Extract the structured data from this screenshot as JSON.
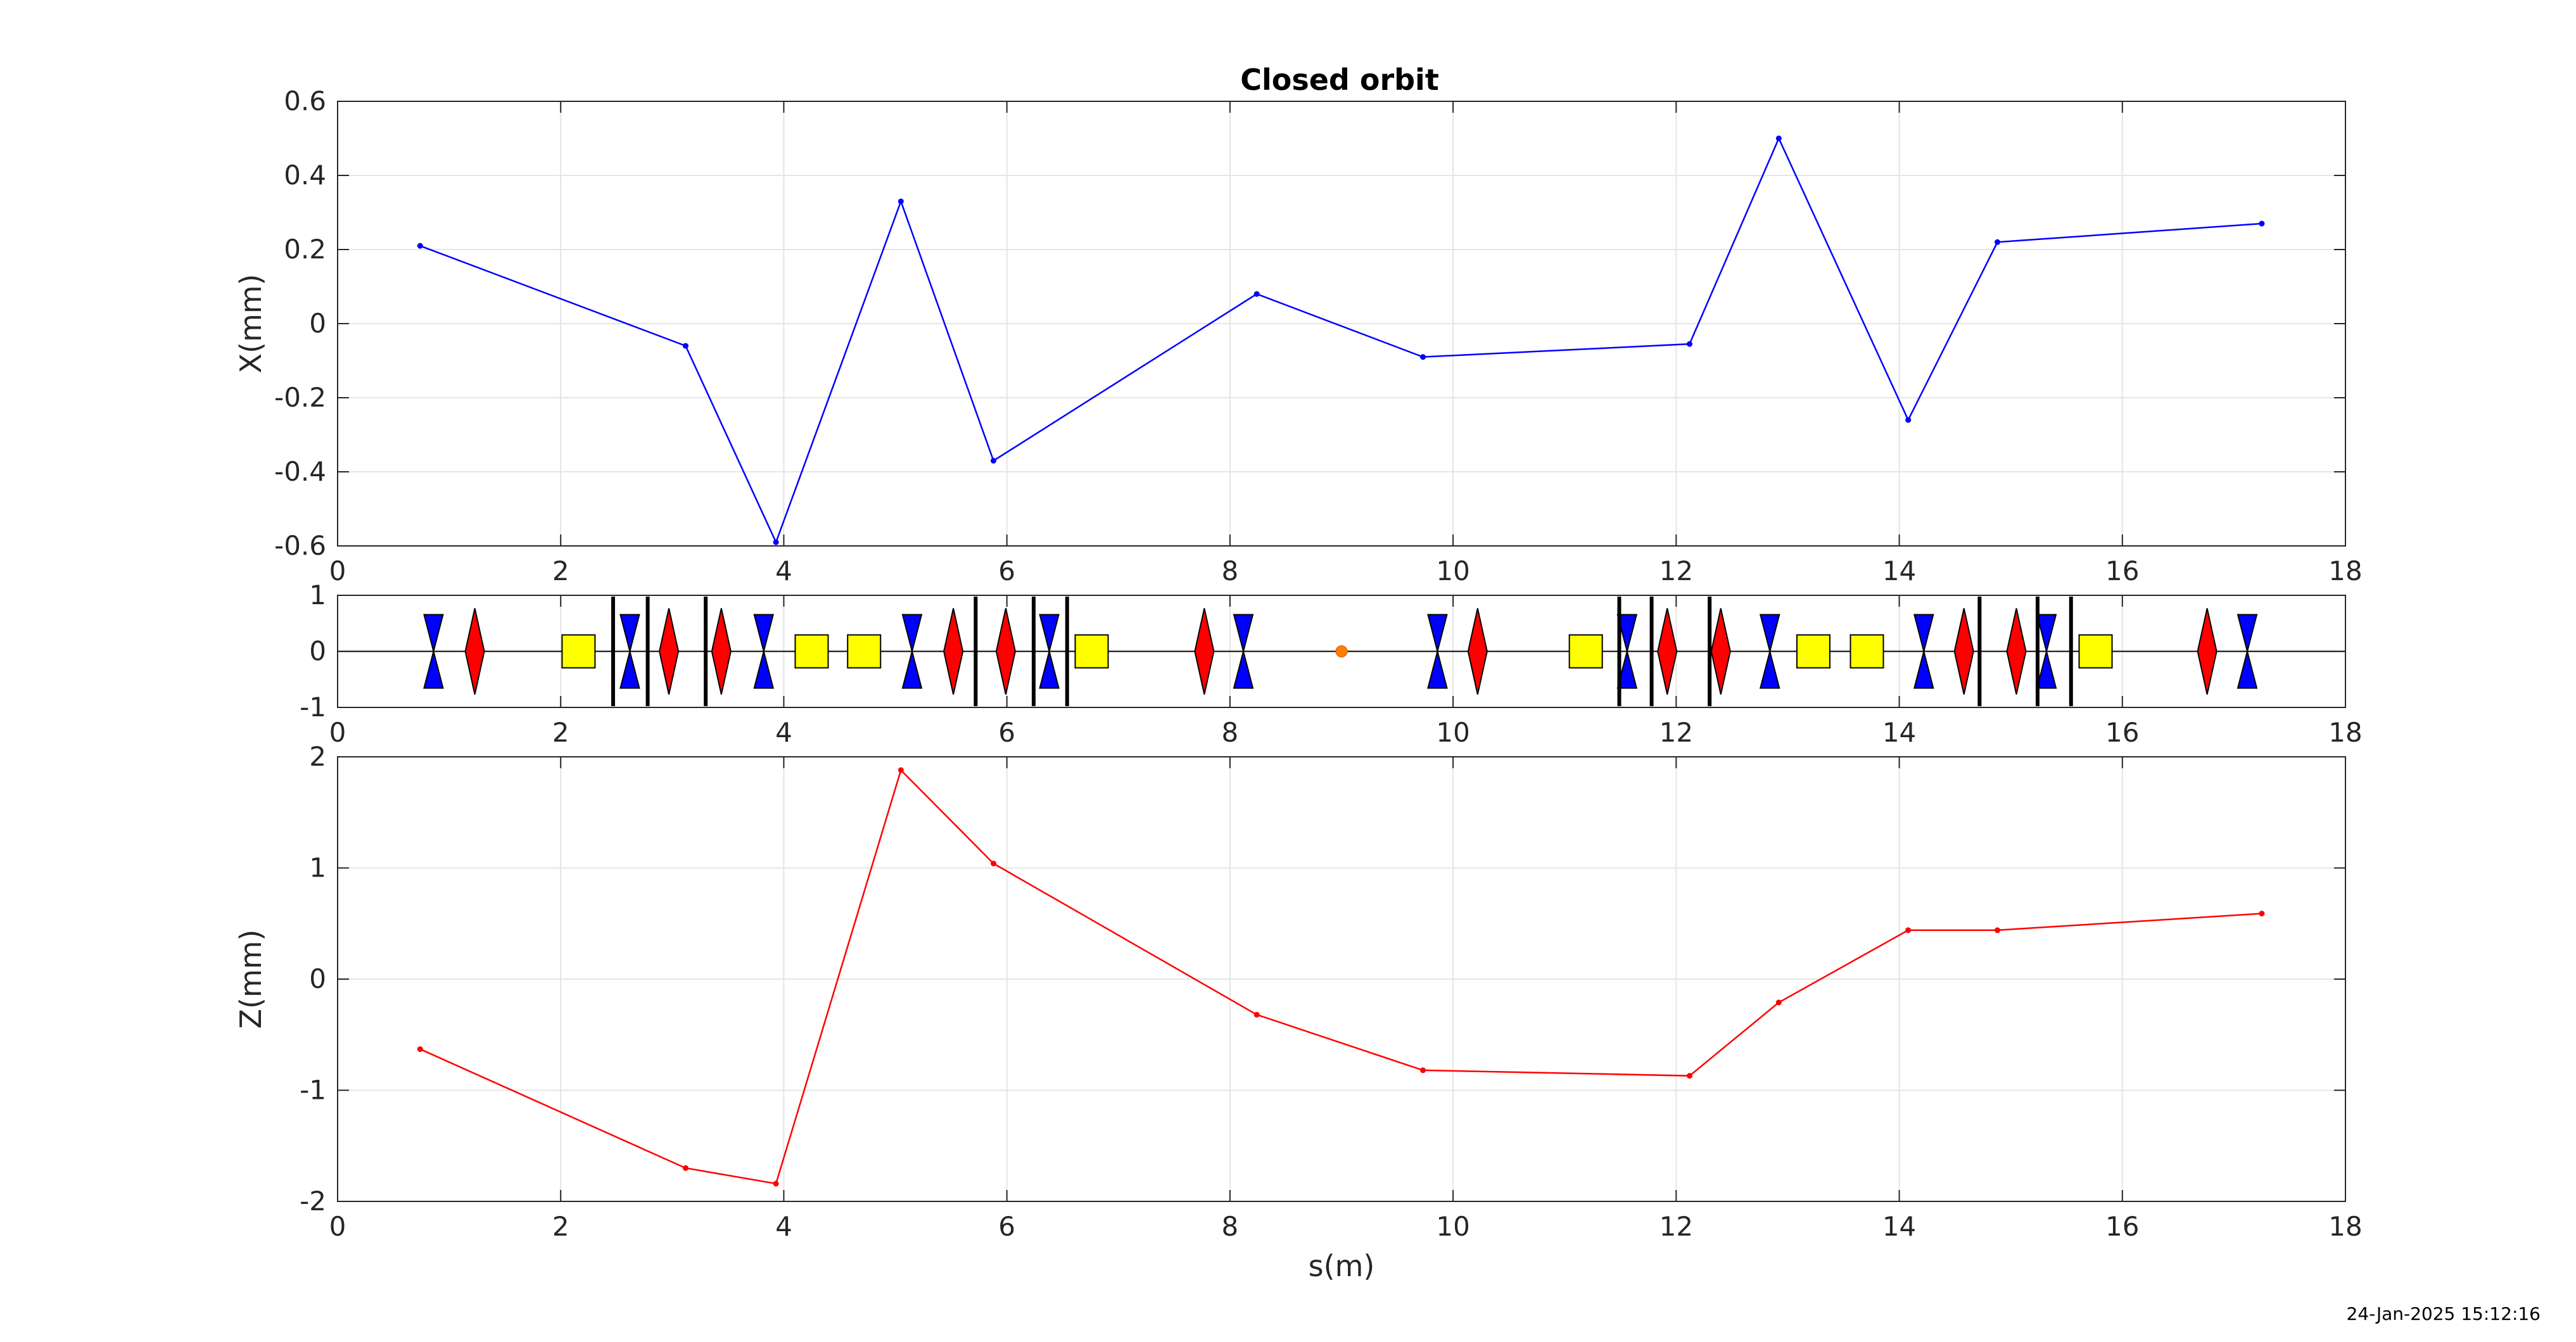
{
  "title": "Closed orbit",
  "timestamp": "24-Jan-2025 15:12:16",
  "colors": {
    "x_series": "#0000ff",
    "z_series": "#ff0000",
    "focusing_quad": "#ff0000",
    "defocusing_quad": "#0000ff",
    "dipole": "#ffff00",
    "marker": "#ff7f00",
    "grid": "#e5e5e5",
    "axes": "#262626"
  },
  "chart_data": [
    {
      "type": "line",
      "name": "horizontal-orbit",
      "ylabel": "X(mm)",
      "xlabel": "",
      "xlim": [
        0,
        18
      ],
      "ylim": [
        -0.6,
        0.6
      ],
      "xticks": [
        0,
        2,
        4,
        6,
        8,
        10,
        12,
        14,
        16,
        18
      ],
      "yticks": [
        -0.6,
        -0.4,
        -0.2,
        0,
        0.2,
        0.4,
        0.6
      ],
      "xticklabels": [
        "0",
        "2",
        "4",
        "6",
        "8",
        "10",
        "12",
        "14",
        "16",
        "18"
      ],
      "yticklabels": [
        "-0.6",
        "-0.4",
        "-0.2",
        "0",
        "0.2",
        "0.4",
        "0.6"
      ],
      "grid": true,
      "x": [
        0.74,
        3.12,
        3.93,
        5.05,
        5.88,
        8.24,
        9.73,
        12.12,
        12.92,
        14.08,
        14.88,
        17.25
      ],
      "y": [
        0.21,
        -0.06,
        -0.59,
        0.33,
        -0.37,
        0.08,
        -0.09,
        -0.055,
        0.5,
        -0.26,
        0.22,
        0.27
      ]
    },
    {
      "type": "synoptic",
      "name": "lattice",
      "xlim": [
        0,
        18
      ],
      "ylim": [
        -1,
        1
      ],
      "xticks": [
        0,
        2,
        4,
        6,
        8,
        10,
        12,
        14,
        16,
        18
      ],
      "yticks": [
        -1,
        0,
        1
      ],
      "xticklabels": [
        "0",
        "2",
        "4",
        "6",
        "8",
        "10",
        "12",
        "14",
        "16",
        "18"
      ],
      "yticklabels": [
        "-1",
        "0",
        "1"
      ],
      "grid": true,
      "defocusing_quads": [
        0.86,
        2.62,
        3.82,
        5.15,
        6.38,
        8.12,
        9.86,
        11.56,
        12.84,
        14.22,
        15.32,
        17.12
      ],
      "focusing_quads": [
        1.23,
        2.97,
        3.44,
        5.52,
        5.99,
        7.77,
        10.22,
        11.92,
        12.4,
        14.58,
        15.05,
        16.76
      ],
      "dipoles": [
        2.16,
        4.25,
        4.72,
        6.76,
        11.19,
        13.23,
        13.71,
        15.76
      ],
      "bpms": [
        2.47,
        2.78,
        3.3,
        5.72,
        6.24,
        6.54,
        11.49,
        11.78,
        12.3,
        14.72,
        15.24,
        15.54
      ],
      "markers": [
        9.0
      ]
    },
    {
      "type": "line",
      "name": "vertical-orbit",
      "ylabel": "Z(mm)",
      "xlabel": "s(m)",
      "xlim": [
        0,
        18
      ],
      "ylim": [
        -2,
        2
      ],
      "xticks": [
        0,
        2,
        4,
        6,
        8,
        10,
        12,
        14,
        16,
        18
      ],
      "yticks": [
        -2,
        -1,
        0,
        1,
        2
      ],
      "xticklabels": [
        "0",
        "2",
        "4",
        "6",
        "8",
        "10",
        "12",
        "14",
        "16",
        "18"
      ],
      "yticklabels": [
        "-2",
        "-1",
        "0",
        "1",
        "2"
      ],
      "grid": true,
      "x": [
        0.74,
        3.12,
        3.93,
        5.05,
        5.88,
        8.24,
        9.73,
        12.12,
        12.92,
        14.08,
        14.88,
        17.25
      ],
      "y": [
        -0.63,
        -1.7,
        -1.84,
        1.88,
        1.04,
        -0.32,
        -0.82,
        -0.87,
        -0.21,
        0.44,
        0.44,
        0.59
      ]
    }
  ]
}
